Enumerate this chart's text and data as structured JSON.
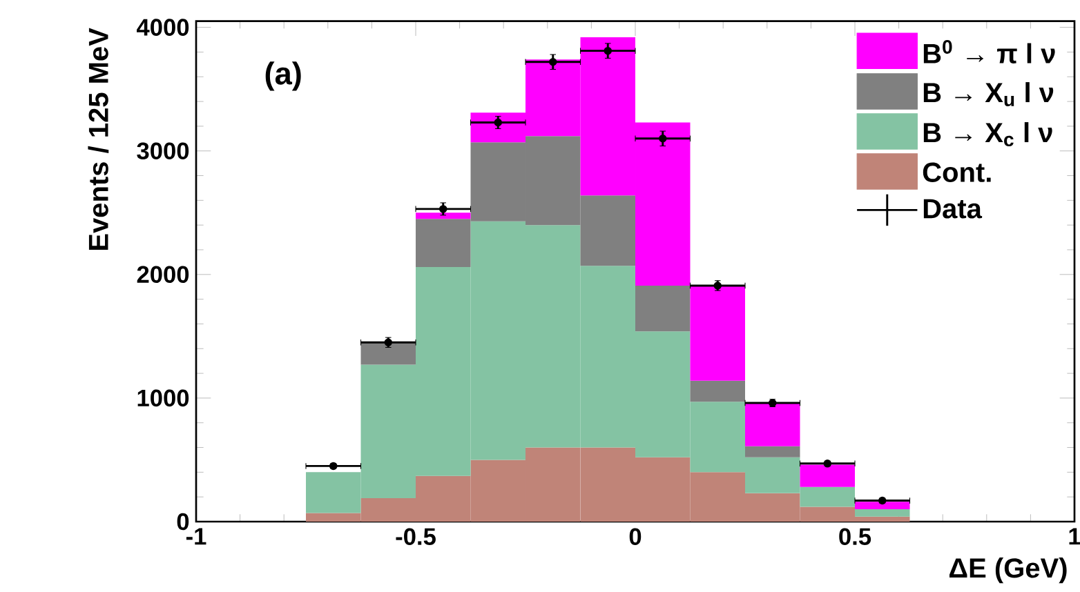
{
  "chart_data": {
    "type": "bar",
    "stacked": true,
    "xlabel": "ΔE (GeV)",
    "ylabel": "Events / 125 MeV",
    "annotations": [
      "(a)"
    ],
    "x": [
      -0.6875,
      -0.5625,
      -0.4375,
      -0.3125,
      -0.1875,
      -0.0625,
      0.0625,
      0.1875,
      0.3125,
      0.4375,
      0.5625
    ],
    "series": [
      {
        "name": "Cont.",
        "color": "#c08478",
        "values": [
          70,
          190,
          370,
          500,
          600,
          600,
          520,
          400,
          230,
          120,
          40
        ]
      },
      {
        "name": "B → X$_{c}$ l ν",
        "color": "#84c3a3",
        "values": [
          330,
          1080,
          1690,
          1930,
          1800,
          1470,
          1020,
          570,
          290,
          160,
          60
        ]
      },
      {
        "name": "B → X$_{u}$ l ν",
        "color": "#808080",
        "values": [
          0,
          180,
          390,
          640,
          720,
          570,
          370,
          170,
          90,
          0,
          0
        ]
      },
      {
        "name": "B$^{0}$ → π l ν",
        "color": "#ff00ff",
        "values": [
          0,
          0,
          50,
          240,
          620,
          1280,
          1320,
          770,
          350,
          180,
          60
        ]
      },
      {
        "name": "Data",
        "type": "scatter",
        "color": "#000000",
        "x": [
          -0.6875,
          -0.5625,
          -0.4375,
          -0.3125,
          -0.1875,
          -0.0625,
          0.0625,
          0.1875,
          0.3125,
          0.4375,
          0.5625
        ],
        "values": [
          450,
          1450,
          2530,
          3230,
          3720,
          3810,
          3100,
          1910,
          960,
          470,
          170
        ],
        "errors": [
          20,
          40,
          50,
          50,
          60,
          60,
          60,
          40,
          30,
          20,
          20
        ],
        "xerrors": [
          0.0625,
          0.0625,
          0.0625,
          0.0625,
          0.0625,
          0.0625,
          0.0625,
          0.0625,
          0.0625,
          0.0625,
          0.0625
        ]
      }
    ],
    "marker": "circle",
    "legend": "top right",
    "xlim": [
      -1,
      1
    ],
    "xticks": [
      -1,
      -0.5,
      0,
      0.5,
      1
    ],
    "ylim": [
      0,
      4050
    ],
    "yticks": [
      0,
      1000,
      2000,
      3000,
      4000
    ]
  }
}
